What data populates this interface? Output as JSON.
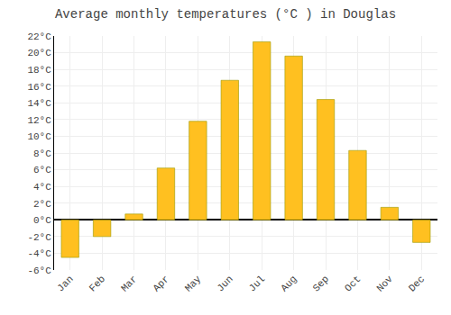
{
  "chart_data": {
    "type": "bar",
    "title": "Average monthly temperatures (°C ) in Douglas",
    "categories": [
      "Jan",
      "Feb",
      "Mar",
      "Apr",
      "May",
      "Jun",
      "Jul",
      "Aug",
      "Sep",
      "Oct",
      "Nov",
      "Dec"
    ],
    "values": [
      -4.5,
      -2.0,
      0.7,
      6.2,
      11.8,
      16.7,
      21.3,
      19.6,
      14.4,
      8.3,
      1.5,
      -2.7
    ],
    "color": "#FFC020",
    "ylim": [
      -6,
      22
    ],
    "yticks": [
      {
        "value": -6,
        "label": "-6°C"
      },
      {
        "value": -4,
        "label": "-4°C"
      },
      {
        "value": -2,
        "label": "-2°C"
      },
      {
        "value": 0,
        "label": "0°C"
      },
      {
        "value": 2,
        "label": "2°C"
      },
      {
        "value": 4,
        "label": "4°C"
      },
      {
        "value": 6,
        "label": "6°C"
      },
      {
        "value": 8,
        "label": "8°C"
      },
      {
        "value": 10,
        "label": "10°C"
      },
      {
        "value": 12,
        "label": "12°C"
      },
      {
        "value": 14,
        "label": "14°C"
      },
      {
        "value": 16,
        "label": "16°C"
      },
      {
        "value": 18,
        "label": "18°C"
      },
      {
        "value": 20,
        "label": "20°C"
      },
      {
        "value": 22,
        "label": "22°C"
      }
    ],
    "grid": true
  }
}
